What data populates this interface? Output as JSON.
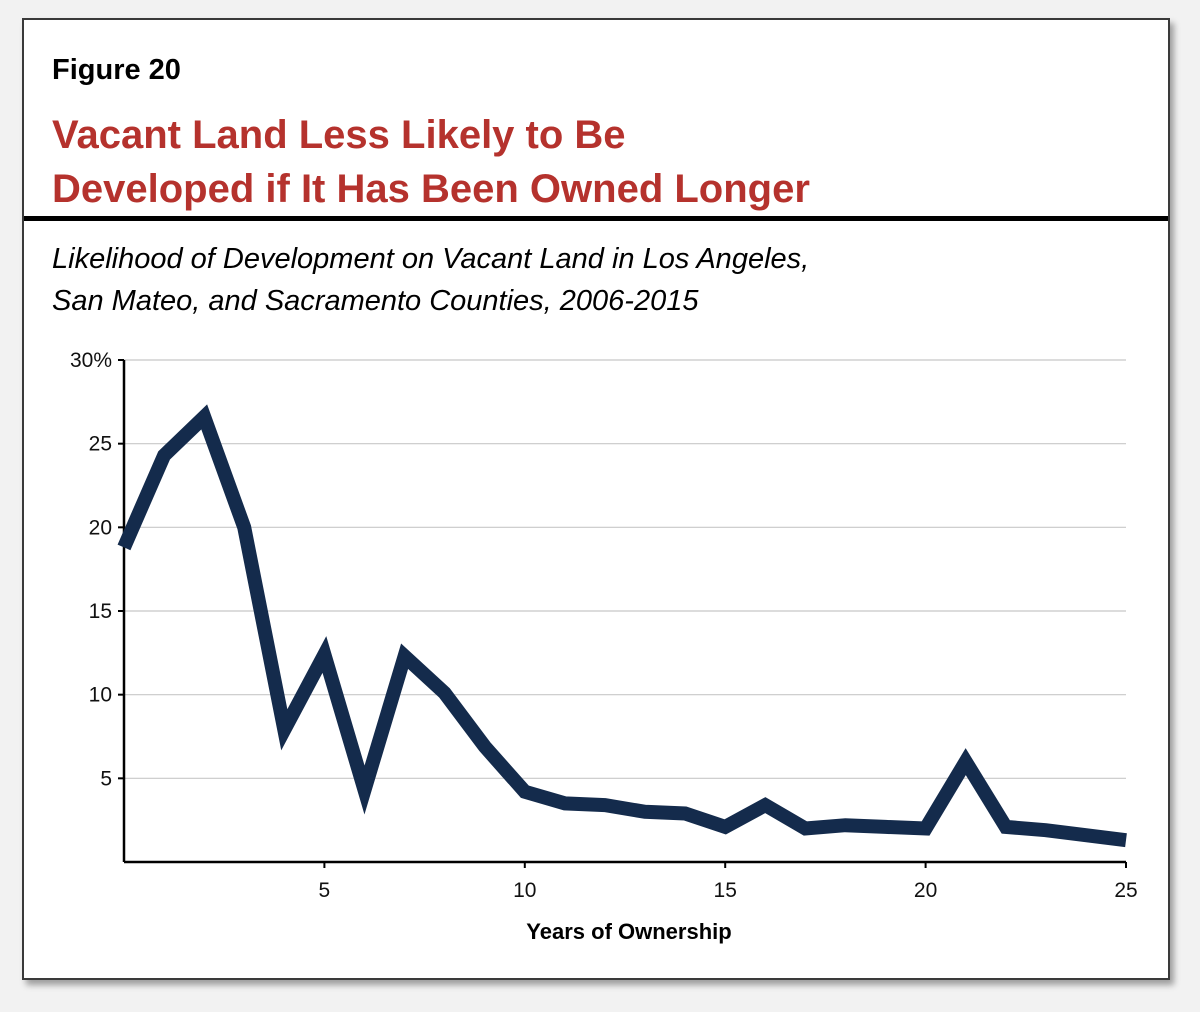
{
  "figure": {
    "label": "Figure 20",
    "title_line1": "Vacant Land Less Likely to Be",
    "title_line2": "Developed if It Has Been Owned Longer",
    "subtitle_line1": "Likelihood of Development on Vacant Land in Los Angeles,",
    "subtitle_line2": "San Mateo, and Sacramento Counties, 2006-2015"
  },
  "colors": {
    "title": "#b5322d",
    "line": "#142b4c",
    "grid": "#c8c8c8"
  },
  "chart_data": {
    "type": "line",
    "title": "Vacant Land Less Likely to Be Developed if It Has Been Owned Longer",
    "xlabel": "Years of Ownership",
    "ylabel": "",
    "xlim": [
      0,
      25
    ],
    "ylim": [
      0,
      30
    ],
    "x_ticks": [
      5,
      10,
      15,
      20,
      25
    ],
    "x_tick_labels": [
      "5",
      "10",
      "15",
      "20",
      "25"
    ],
    "y_ticks": [
      5,
      10,
      15,
      20,
      25,
      30
    ],
    "y_tick_labels": [
      "5",
      "10",
      "15",
      "20",
      "25",
      "30%"
    ],
    "grid": true,
    "series": [
      {
        "name": "Likelihood of development",
        "x": [
          0,
          1,
          2,
          3,
          4,
          5,
          6,
          7,
          8,
          9,
          10,
          11,
          12,
          13,
          14,
          15,
          16,
          17,
          18,
          19,
          20,
          21,
          22,
          23,
          24,
          25
        ],
        "values": [
          18.8,
          24.3,
          26.6,
          20.0,
          7.9,
          12.4,
          4.3,
          12.3,
          10.1,
          6.9,
          4.2,
          3.5,
          3.4,
          3.0,
          2.9,
          2.1,
          3.4,
          2.0,
          2.2,
          2.1,
          2.0,
          6.0,
          2.1,
          1.9,
          1.6,
          1.3
        ]
      }
    ]
  }
}
